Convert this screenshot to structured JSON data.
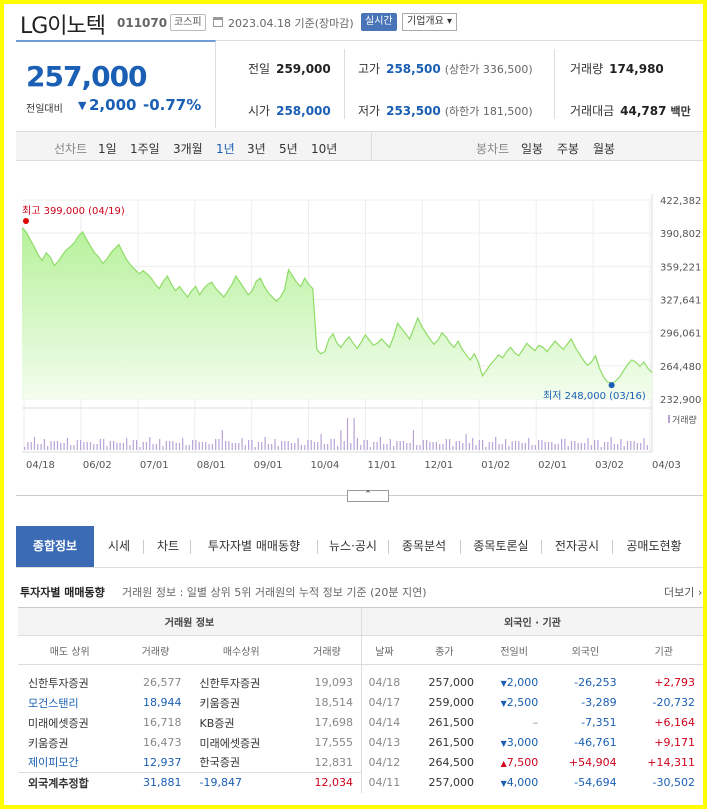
{
  "header": {
    "name": "LG이노텍",
    "code": "011070",
    "market": "코스피",
    "date": "2023.04.18 기준(장마감)",
    "realtime": "실시간",
    "overview": "기업개요 ▾"
  },
  "price": {
    "current": "257,000",
    "change_label": "전일대비",
    "change_arrow": "▼",
    "change": "2,000",
    "change_pct": "-0.77%"
  },
  "stats": {
    "prev_label": "전일",
    "prev": "259,000",
    "high_label": "고가",
    "high": "258,500",
    "high_sub": "(상한가 336,500)",
    "volume_label": "거래량",
    "volume": "174,980",
    "open_label": "시가",
    "open": "258,000",
    "low_label": "저가",
    "low": "253,500",
    "low_sub": "(하한가 181,500)",
    "amount_label": "거래대금",
    "amount": "44,787",
    "amount_unit": "백만"
  },
  "periods": {
    "line_label": "선차트",
    "items": [
      "1일",
      "1주일",
      "3개월",
      "1년",
      "3년",
      "5년",
      "10년"
    ],
    "active": "1년",
    "candle_label": "봉차트",
    "candle_items": [
      "일봉",
      "주봉",
      "월봉"
    ]
  },
  "chart_data": {
    "type": "area",
    "y_ticks": [
      "422,382",
      "390,802",
      "359,221",
      "327,641",
      "296,061",
      "264,480",
      "232,900"
    ],
    "ylim": [
      232900,
      422382
    ],
    "x_ticks": [
      "04/18",
      "06/02",
      "07/01",
      "08/01",
      "09/01",
      "10/04",
      "11/01",
      "12/01",
      "01/02",
      "02/01",
      "03/02",
      "04/03"
    ],
    "max_label": "최고 399,000 (04/19)",
    "min_label": "최저 248,000 (03/16)",
    "volume_label": "거래량",
    "values": [
      396000,
      392000,
      385000,
      378000,
      370000,
      365000,
      372000,
      368000,
      360000,
      364000,
      370000,
      375000,
      378000,
      382000,
      388000,
      392000,
      385000,
      378000,
      372000,
      368000,
      362000,
      366000,
      372000,
      376000,
      380000,
      372000,
      365000,
      360000,
      356000,
      352000,
      355000,
      352000,
      348000,
      342000,
      338000,
      345000,
      350000,
      342000,
      336000,
      340000,
      335000,
      330000,
      336000,
      340000,
      332000,
      338000,
      342000,
      344000,
      338000,
      334000,
      330000,
      336000,
      342000,
      350000,
      344000,
      338000,
      332000,
      336000,
      345000,
      348000,
      340000,
      334000,
      330000,
      326000,
      330000,
      337000,
      356000,
      350000,
      344000,
      340000,
      348000,
      342000,
      338000,
      280000,
      276000,
      278000,
      290000,
      295000,
      286000,
      282000,
      288000,
      292000,
      286000,
      281000,
      287000,
      294000,
      289000,
      284000,
      286000,
      290000,
      286000,
      282000,
      292000,
      305000,
      300000,
      295000,
      290000,
      300000,
      310000,
      302000,
      296000,
      290000,
      285000,
      289000,
      296000,
      292000,
      286000,
      282000,
      288000,
      280000,
      275000,
      270000,
      276000,
      268000,
      255000,
      260000,
      266000,
      270000,
      275000,
      272000,
      278000,
      282000,
      277000,
      274000,
      280000,
      286000,
      282000,
      279000,
      284000,
      282000,
      278000,
      283000,
      288000,
      284000,
      280000,
      285000,
      290000,
      282000,
      276000,
      270000,
      265000,
      268000,
      274000,
      262000,
      254000,
      249000,
      248000,
      250000,
      254000,
      260000,
      266000,
      270000,
      268000,
      264000,
      268000,
      262000,
      258000
    ]
  },
  "fold_label": "⌃",
  "tabs": [
    "종합정보",
    "시세",
    "차트",
    "투자자별 매매동향",
    "뉴스·공시",
    "종목분석",
    "종목토론실",
    "전자공시",
    "공매도현황"
  ],
  "section": {
    "title": "투자자별 매매동향",
    "desc": "거래원 정보 : 일별 상위 5위 거래원의 누적 정보 기준 (20분 지연)",
    "more": "더보기 ›"
  },
  "left_table": {
    "group": "거래원 정보",
    "headers": [
      "매도 상위",
      "거래량",
      "매수상위",
      "거래량"
    ],
    "rows": [
      [
        "신한투자증권",
        "26,577",
        "신한투자증권",
        "19,093"
      ],
      [
        "모건스탠리",
        "18,944",
        "키움증권",
        "18,514"
      ],
      [
        "미래에셋증권",
        "16,718",
        "KB증권",
        "17,698"
      ],
      [
        "키움증권",
        "16,473",
        "미래에셋증권",
        "17,555"
      ],
      [
        "제이피모간",
        "12,937",
        "한국증권",
        "12,831"
      ]
    ],
    "total": [
      "외국계추정합",
      "31,881",
      "-19,847",
      "12,034"
    ]
  },
  "right_table": {
    "group": "외국인 · 기관",
    "headers": [
      "날짜",
      "종가",
      "전일비",
      "외국인",
      "기관"
    ],
    "rows": [
      [
        "04/18",
        "257,000",
        "▼",
        "2,000",
        "-26,253",
        "+2,793"
      ],
      [
        "04/17",
        "259,000",
        "▼",
        "2,500",
        "-3,289",
        "-20,732"
      ],
      [
        "04/14",
        "261,500",
        "",
        "–",
        "-7,351",
        "+6,164"
      ],
      [
        "04/13",
        "261,500",
        "▼",
        "3,000",
        "-46,761",
        "+9,171"
      ],
      [
        "04/12",
        "264,500",
        "▲",
        "7,500",
        "+54,904",
        "+14,311"
      ],
      [
        "04/11",
        "257,000",
        "▼",
        "4,000",
        "-54,694",
        "-30,502"
      ]
    ]
  }
}
